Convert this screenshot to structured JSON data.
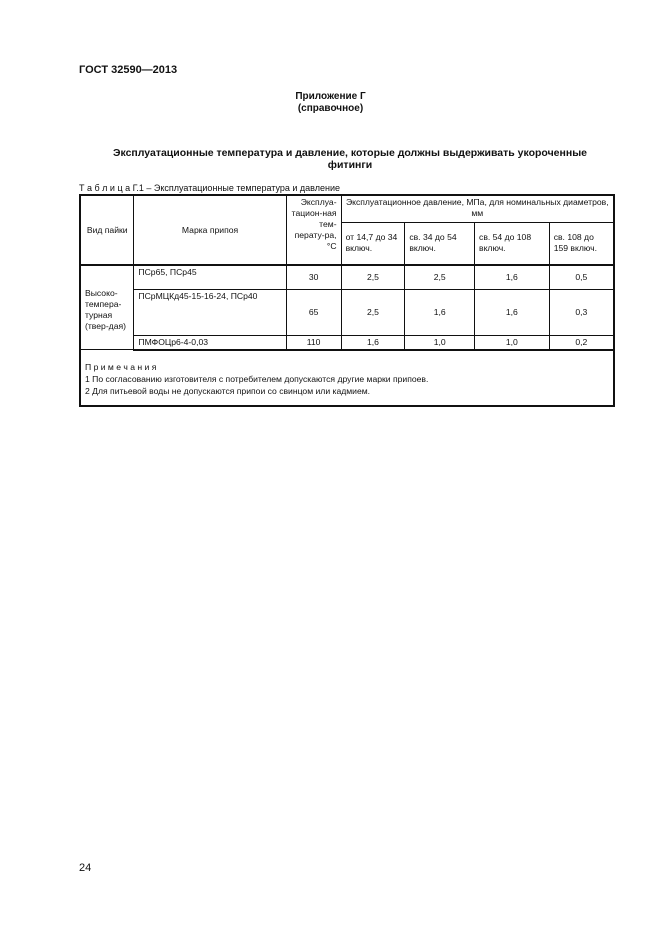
{
  "header": {
    "doc_code": "ГОСТ 32590—2013"
  },
  "annex": {
    "title": "Приложение Г",
    "subtitle": "(справочное)"
  },
  "section_title": "Эксплуатационные температура и давление, которые должны выдерживать укороченные фитинги",
  "table": {
    "caption": "Т а б л и ц а  Г.1 – Эксплуатационные температура и давление",
    "headers": {
      "type": "Вид пайки",
      "brand": "Марка припоя",
      "temp": "Эксплуа-тацион-ная тем-перату-ра, °С",
      "pressure_group": "Эксплуатационное давление, МПа, для номинальных диаметров, мм",
      "d1": "от 14,7 до 34 включ.",
      "d2": "св. 34 до 54 включ.",
      "d3": "св. 54 до 108 включ.",
      "d4": "св. 108 до 159 включ."
    },
    "type_value": "Высоко-темпера-турная (твер-дая)",
    "rows": [
      {
        "brand": "ПСр65, ПСр45",
        "temp": "30",
        "d1": "2,5",
        "d2": "2,5",
        "d3": "1,6",
        "d4": "0,5"
      },
      {
        "brand": "ПСрМЦКд45-15-16-24, ПСр40",
        "temp": "65",
        "d1": "2,5",
        "d2": "1,6",
        "d3": "1,6",
        "d4": "0,3"
      },
      {
        "brand": "ПМФОЦр6-4-0,03",
        "temp": "110",
        "d1": "1,6",
        "d2": "1,0",
        "d3": "1,0",
        "d4": "0,2"
      }
    ],
    "notes": {
      "heading": "П р и м е ч а н и я",
      "items": [
        "1 По согласованию изготовителя с потребителем допускаются другие марки припоев.",
        "2 Для питьевой воды не допускаются припои со свинцом или кадмием."
      ]
    }
  },
  "footer": {
    "page_number": "24"
  }
}
